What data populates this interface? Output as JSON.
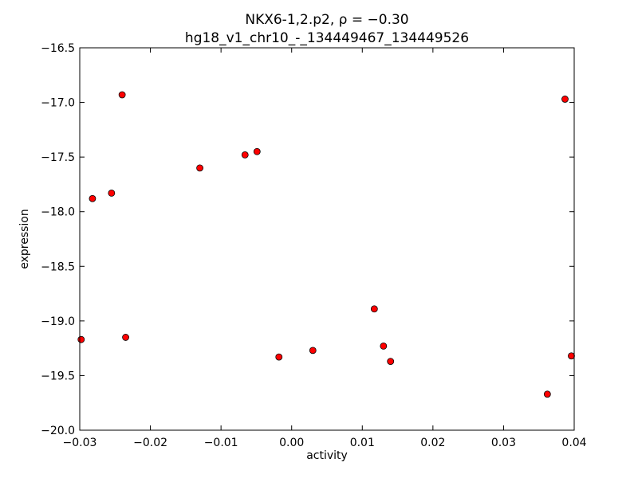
{
  "chart_data": {
    "type": "scatter",
    "title_line1": "NKX6-1,2.p2, ρ = −0.30",
    "title_line2": "hg18_v1_chr10_-_134449467_134449526",
    "xlabel": "activity",
    "ylabel": "expression",
    "xlim": [
      -0.03,
      0.04
    ],
    "ylim": [
      -20.0,
      -16.5
    ],
    "xticks": [
      -0.03,
      -0.02,
      -0.01,
      0.0,
      0.01,
      0.02,
      0.03,
      0.04
    ],
    "xtick_labels": [
      "−0.03",
      "−0.02",
      "−0.01",
      "0.00",
      "0.01",
      "0.02",
      "0.03",
      "0.04"
    ],
    "yticks": [
      -20.0,
      -19.5,
      -19.0,
      -18.5,
      -18.0,
      -17.5,
      -17.0,
      -16.5
    ],
    "ytick_labels": [
      "−20.0",
      "−19.5",
      "−19.0",
      "−18.5",
      "−18.0",
      "−17.5",
      "−17.0",
      "−16.5"
    ],
    "grid": false,
    "marker_color": "#ff0000",
    "marker_edge": "#000000",
    "points": [
      {
        "x": -0.024,
        "y": -16.93
      },
      {
        "x": -0.0282,
        "y": -17.88
      },
      {
        "x": -0.0255,
        "y": -17.83
      },
      {
        "x": -0.013,
        "y": -17.6
      },
      {
        "x": -0.0066,
        "y": -17.48
      },
      {
        "x": -0.0049,
        "y": -17.45
      },
      {
        "x": -0.0298,
        "y": -19.17
      },
      {
        "x": -0.0235,
        "y": -19.15
      },
      {
        "x": -0.0018,
        "y": -19.33
      },
      {
        "x": 0.003,
        "y": -19.27
      },
      {
        "x": 0.0117,
        "y": -18.89
      },
      {
        "x": 0.013,
        "y": -19.23
      },
      {
        "x": 0.014,
        "y": -19.37
      },
      {
        "x": 0.0362,
        "y": -19.67
      },
      {
        "x": 0.0387,
        "y": -16.97
      },
      {
        "x": 0.0396,
        "y": -19.32
      }
    ]
  }
}
